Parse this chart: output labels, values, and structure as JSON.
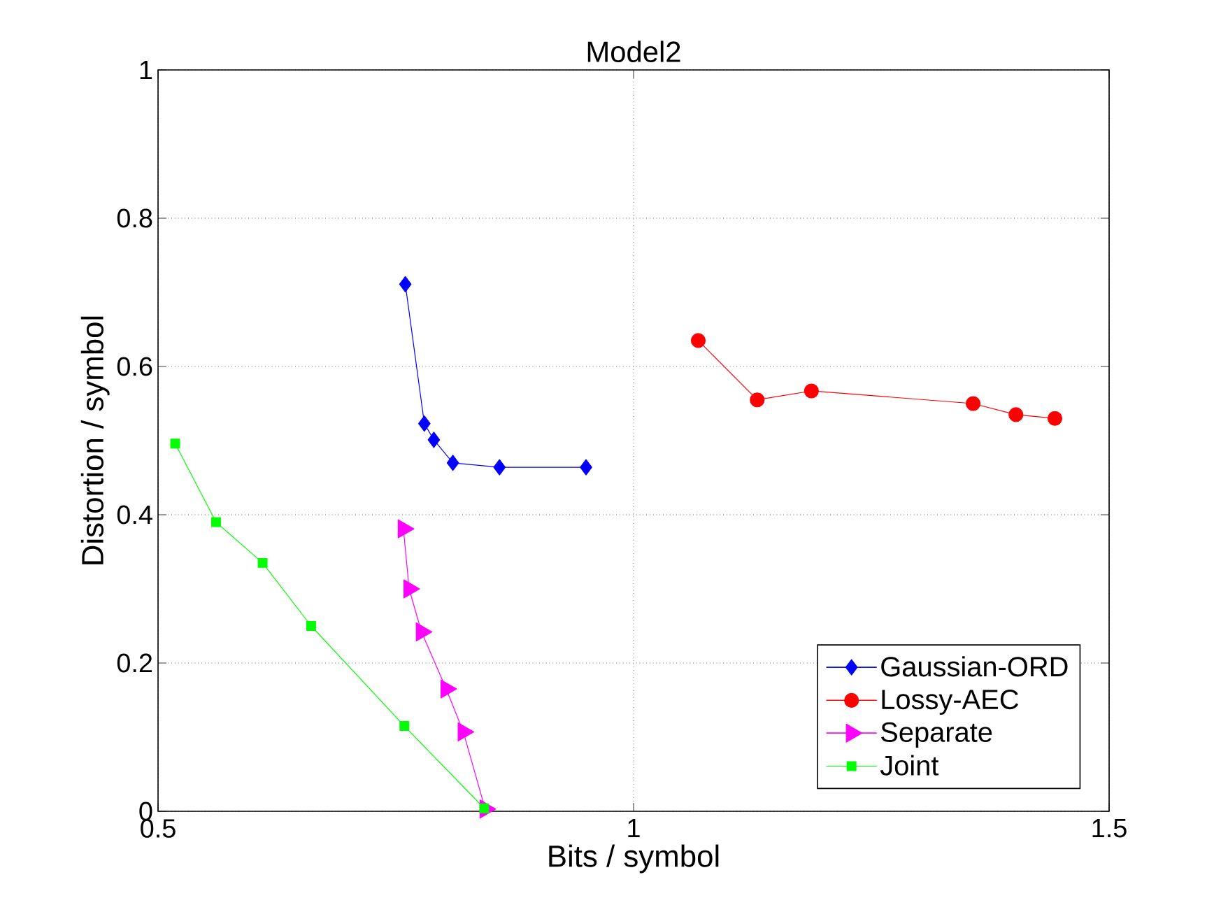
{
  "chart_data": {
    "type": "line",
    "title": "Model2",
    "xlabel": "Bits / symbol",
    "ylabel": "Distortion / symbol",
    "xlim": [
      0.5,
      1.5
    ],
    "ylim": [
      0,
      1
    ],
    "xticks": [
      0.5,
      1,
      1.5
    ],
    "yticks": [
      0,
      0.2,
      0.4,
      0.6,
      0.8,
      1
    ],
    "grid": true,
    "legend": "bottom right",
    "line_style": "solid",
    "series": [
      {
        "name": "Gaussian-ORD",
        "color": "#0000ff",
        "marker": "diamond",
        "x": [
          0.76,
          0.78,
          0.79,
          0.81,
          0.859,
          0.95
        ],
        "values": [
          0.711,
          0.523,
          0.501,
          0.47,
          0.464,
          0.464
        ]
      },
      {
        "name": "Lossy-AEC",
        "color": "#ff0000",
        "marker": "circle",
        "x": [
          1.068,
          1.13,
          1.187,
          1.357,
          1.402,
          1.443
        ],
        "values": [
          0.635,
          0.555,
          0.567,
          0.55,
          0.535,
          0.53
        ]
      },
      {
        "name": "Separate",
        "color": "#ff00ff",
        "marker": "triangle",
        "x": [
          0.758,
          0.764,
          0.777,
          0.803,
          0.821,
          0.844
        ],
        "values": [
          0.381,
          0.3,
          0.242,
          0.165,
          0.107,
          0.003
        ]
      },
      {
        "name": "Joint",
        "color": "#00ff00",
        "marker": "square",
        "x": [
          0.518,
          0.561,
          0.61,
          0.661,
          0.759,
          0.843
        ],
        "values": [
          0.496,
          0.39,
          0.335,
          0.25,
          0.115,
          0.004
        ]
      }
    ]
  }
}
